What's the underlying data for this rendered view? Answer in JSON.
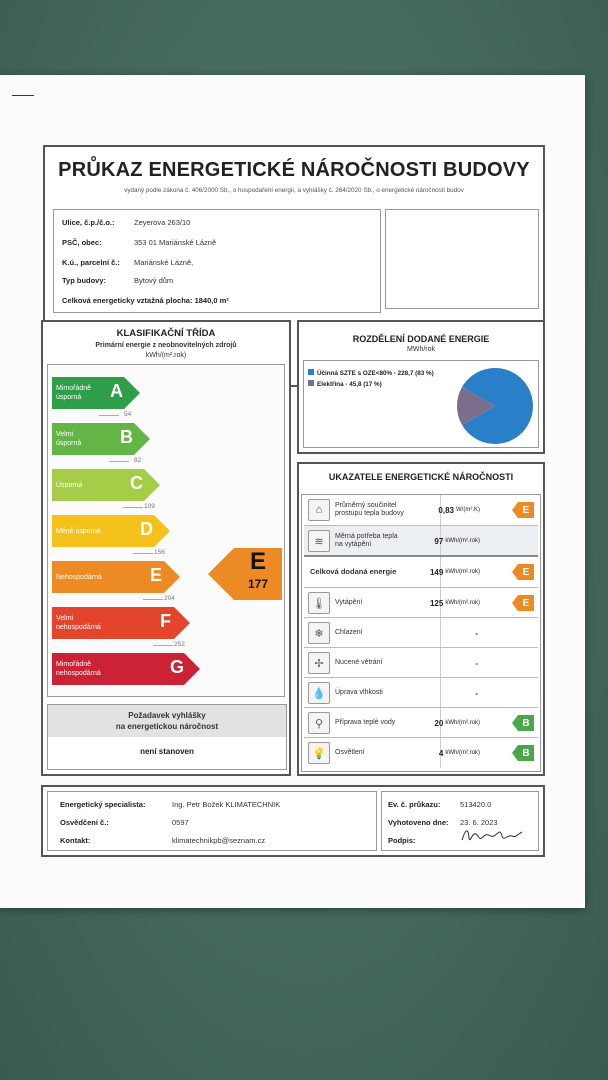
{
  "document": {
    "title": "PRŮKAZ ENERGETICKÉ NÁROČNOSTI BUDOVY",
    "subtitle": "vydaný podle zákona č. 406/2000 Sb., o hospodaření energií, a vyhlášky č. 264/2020 Sb., o energetické náročnosti budov"
  },
  "building": [
    {
      "label": "Ulice, č.p./č.o.:",
      "value": "Zeyerova 263/10"
    },
    {
      "label": "PSČ, obec:",
      "value": "353 01 Mariánské Lázně"
    },
    {
      "label": "K.ú., parcelní č.:",
      "value": "Mariánské Lázně,"
    },
    {
      "label": "Typ budovy:",
      "value": "Bytový dům"
    }
  ],
  "area": {
    "label": "Celková energeticky vztažná plocha:",
    "value": "1840,0 m²"
  },
  "classification": {
    "title": "KLASIFIKAČNÍ TŘÍDA",
    "subtitle": "Primární energie z neobnovitelných zdrojů",
    "unit": "kWh/(m².rok)",
    "bands": [
      {
        "letter": "A",
        "label1": "Mimořádně",
        "label2": "úsporná",
        "color": "#2f9e48"
      },
      {
        "letter": "B",
        "label1": "Velmi",
        "label2": "úsporná",
        "color": "#63b645"
      },
      {
        "letter": "C",
        "label1": "Úsporná",
        "label2": "",
        "color": "#a6cd48"
      },
      {
        "letter": "D",
        "label1": "Méně úsporná",
        "label2": "",
        "color": "#f4c21b"
      },
      {
        "letter": "E",
        "label1": "Nehospodárná",
        "label2": "",
        "color": "#ec8a24"
      },
      {
        "letter": "F",
        "label1": "Velmi",
        "label2": "nehospodárná",
        "color": "#e2452b"
      },
      {
        "letter": "G",
        "label1": "Mimořádně",
        "label2": "nehospodárná",
        "color": "#cc2236"
      }
    ],
    "thresholds": [
      "54",
      "82",
      "109",
      "156",
      "204",
      "252"
    ],
    "result": {
      "letter": "E",
      "value": "177",
      "color": "#ec8a24"
    },
    "requirement_title1": "Požadavek vyhlášky",
    "requirement_title2": "na energetickou náročnost",
    "requirement_value": "není stanoven"
  },
  "distribution": {
    "title": "ROZDĚLENÍ DODANÉ ENERGIE",
    "unit": "MWh/rok",
    "legend": [
      {
        "label": "Účinná SZTE s OZE<80% - 228,7 (83 %)",
        "color": "#2a7fc9"
      },
      {
        "label": "Elektřina - 45,8 (17 %)",
        "color": "#7b6e8a"
      }
    ],
    "chart_data": {
      "type": "pie",
      "categories": [
        "Účinná SZTE s OZE<80%",
        "Elektřina"
      ],
      "values": [
        228.7,
        45.8
      ],
      "percent": [
        83,
        17
      ],
      "unit": "MWh/rok",
      "title": "ROZDĚLENÍ DODANÉ ENERGIE"
    }
  },
  "indicators": {
    "title": "UKAZATELE ENERGETICKÉ NÁROČNOSTI",
    "rows": [
      {
        "name1": "Průměrný součinitel",
        "name2": "prostupu tepla budovy",
        "value": "0,83",
        "unit": "W/(m².K)",
        "badge": "E",
        "badge_color": "#ec8a24",
        "icon": "house-icon",
        "glyph": "⌂",
        "shade": false
      },
      {
        "name1": "Měrná potřeba tepla",
        "name2": "na vytápění",
        "value": "97",
        "unit": "kWh/(m².rok)",
        "badge": "",
        "badge_color": "",
        "icon": "heat-waves-icon",
        "glyph": "≋",
        "shade": true
      },
      {
        "name1": "Celková dodaná energie",
        "name2": "",
        "value": "149",
        "unit": "kWh/(m².rok)",
        "badge": "E",
        "badge_color": "#ec8a24",
        "icon": "",
        "glyph": "",
        "shade": false
      },
      {
        "name1": "Vytápění",
        "name2": "",
        "value": "125",
        "unit": "kWh/(m².rok)",
        "badge": "E",
        "badge_color": "#ec8a24",
        "icon": "thermometer-icon",
        "glyph": "🌡",
        "shade": false
      },
      {
        "name1": "Chlazení",
        "name2": "",
        "value": "-",
        "unit": "",
        "badge": "",
        "badge_color": "",
        "icon": "snowflake-icon",
        "glyph": "❄",
        "shade": false
      },
      {
        "name1": "Nucené větrání",
        "name2": "",
        "value": "-",
        "unit": "",
        "badge": "",
        "badge_color": "",
        "icon": "fan-icon",
        "glyph": "✢",
        "shade": false
      },
      {
        "name1": "Úprava vlhkosti",
        "name2": "",
        "value": "-",
        "unit": "",
        "badge": "",
        "badge_color": "",
        "icon": "droplet-icon",
        "glyph": "💧",
        "shade": false
      },
      {
        "name1": "Příprava teplé vody",
        "name2": "",
        "value": "20",
        "unit": "kWh/(m².rok)",
        "badge": "B",
        "badge_color": "#4aa84a",
        "icon": "faucet-icon",
        "glyph": "⚲",
        "shade": false
      },
      {
        "name1": "Osvětlení",
        "name2": "",
        "value": "4",
        "unit": "kWh/(m².rok)",
        "badge": "B",
        "badge_color": "#4aa84a",
        "icon": "lightbulb-icon",
        "glyph": "💡",
        "shade": false
      }
    ]
  },
  "footer": {
    "left": [
      {
        "label": "Energetický specialista:",
        "value": "Ing. Petr Božek KLIMATECHNIK"
      },
      {
        "label": "Osvědčení č.:",
        "value": "0597"
      },
      {
        "label": "Kontakt:",
        "value": "klimatechnikpb@seznam.cz"
      }
    ],
    "right": [
      {
        "label": "Ev. č. průkazu:",
        "value": "513420.0"
      },
      {
        "label": "Vyhotoveno dne:",
        "value": "23. 6. 2023"
      },
      {
        "label": "Podpis:",
        "value": ""
      }
    ],
    "signature": "Petr Božek"
  }
}
